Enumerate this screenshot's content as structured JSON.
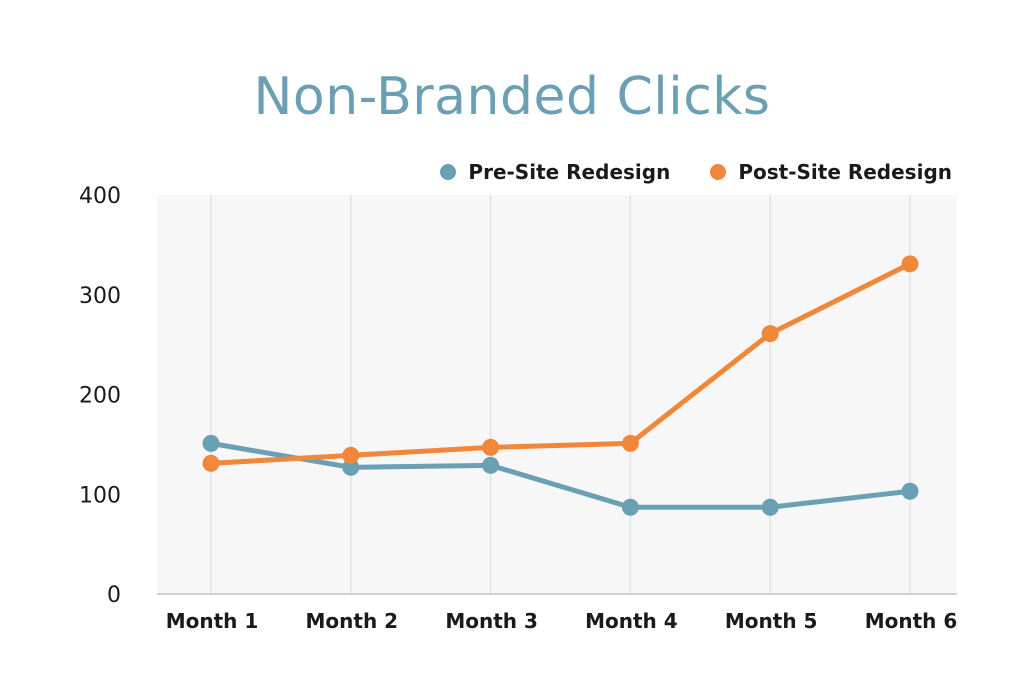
{
  "chart_data": {
    "type": "line",
    "title": "Non-Branded Clicks",
    "xlabel": "",
    "ylabel": "",
    "categories": [
      "Month 1",
      "Month 2",
      "Month 3",
      "Month 4",
      "Month 5",
      "Month 6"
    ],
    "ylim": [
      0,
      400
    ],
    "yticks": [
      0,
      100,
      200,
      300,
      400
    ],
    "grid": "vertical",
    "legend_position": "top-right",
    "series": [
      {
        "name": "Pre-Site Redesign",
        "color": "#6b9fb4",
        "values": [
          151,
          127,
          129,
          87,
          87,
          103
        ]
      },
      {
        "name": "Post-Site Redesign",
        "color": "#f0873a",
        "values": [
          131,
          139,
          147,
          151,
          261,
          331
        ]
      }
    ]
  }
}
